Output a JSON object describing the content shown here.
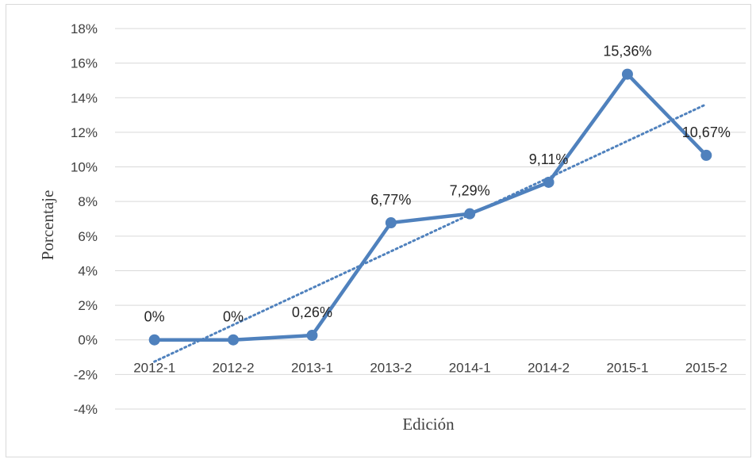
{
  "chart_data": {
    "type": "line",
    "title": "",
    "xlabel": "Edición",
    "ylabel": "Porcentaje",
    "categories": [
      "2012-1",
      "2012-2",
      "2013-1",
      "2013-2",
      "2014-1",
      "2014-2",
      "2015-1",
      "2015-2"
    ],
    "series": [
      {
        "values": [
          0,
          0,
          0.26,
          6.77,
          7.29,
          9.11,
          15.36,
          10.67
        ],
        "labels": [
          "0%",
          "0%",
          "0,26%",
          "6,77%",
          "7,29%",
          "9,11%",
          "15,36%",
          "10,67%"
        ],
        "color": "#4f81bd",
        "marker": "circle"
      }
    ],
    "trendline": {
      "type": "linear",
      "style": "dotted",
      "color": "#4f81bd"
    },
    "ylim": [
      -4,
      18
    ],
    "yticks": [
      -4,
      -2,
      0,
      2,
      4,
      6,
      8,
      10,
      12,
      14,
      16,
      18
    ],
    "ytick_labels": [
      "-4%",
      "-2%",
      "0%",
      "2%",
      "4%",
      "6%",
      "8%",
      "10%",
      "12%",
      "14%",
      "16%",
      "18%"
    ],
    "grid": true,
    "legend": "none",
    "colors": {
      "gridline": "#d9d9d9",
      "series": "#4f81bd",
      "text": "#404040"
    }
  }
}
